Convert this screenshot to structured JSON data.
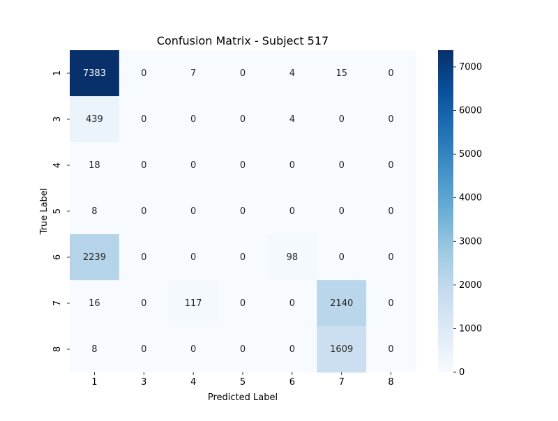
{
  "chart_data": {
    "type": "heatmap",
    "title": "Confusion Matrix - Subject 517",
    "xlabel": "Predicted Label",
    "ylabel": "True Label",
    "x_categories": [
      "1",
      "3",
      "4",
      "5",
      "6",
      "7",
      "8"
    ],
    "y_categories": [
      "1",
      "3",
      "4",
      "5",
      "6",
      "7",
      "8"
    ],
    "values": [
      [
        7383,
        0,
        7,
        0,
        4,
        15,
        0
      ],
      [
        439,
        0,
        0,
        0,
        4,
        0,
        0
      ],
      [
        18,
        0,
        0,
        0,
        0,
        0,
        0
      ],
      [
        8,
        0,
        0,
        0,
        0,
        0,
        0
      ],
      [
        2239,
        0,
        0,
        0,
        98,
        0,
        0
      ],
      [
        16,
        0,
        117,
        0,
        0,
        2140,
        0
      ],
      [
        8,
        0,
        0,
        0,
        0,
        1609,
        0
      ]
    ],
    "colorbar": {
      "min": 0,
      "max": 7383,
      "ticks": [
        0,
        1000,
        2000,
        3000,
        4000,
        5000,
        6000,
        7000
      ]
    },
    "colormap": "Blues",
    "colors": {
      "low": "#f7fbff",
      "high": "#08306b",
      "text_dark": "#262626",
      "text_light": "#ffffff"
    }
  }
}
